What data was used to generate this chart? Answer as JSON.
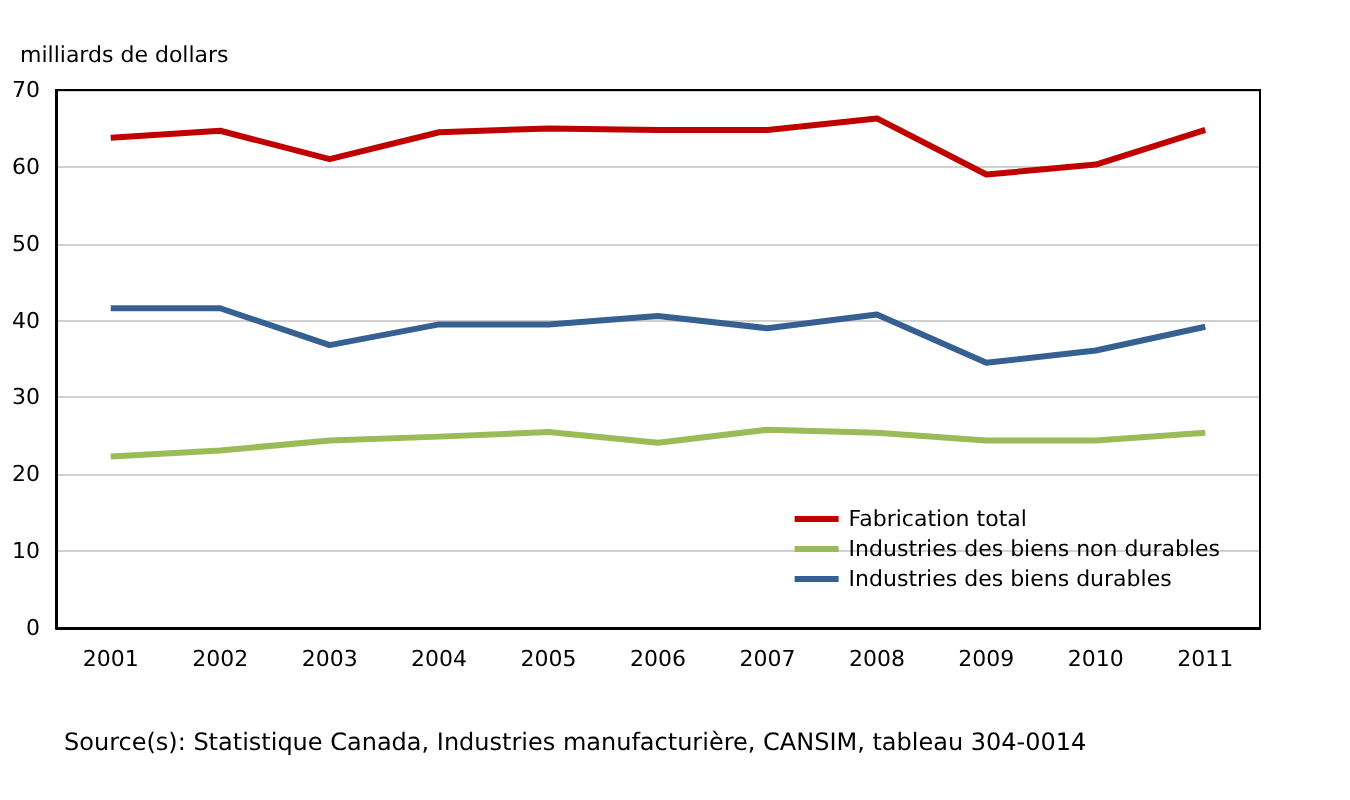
{
  "chart_data": {
    "type": "line",
    "ylabel": "milliards de dollars",
    "categories": [
      "2001",
      "2002",
      "2003",
      "2004",
      "2005",
      "2006",
      "2007",
      "2008",
      "2009",
      "2010",
      "2011"
    ],
    "series": [
      {
        "name": "Fabrication total",
        "color": "#c00000",
        "values": [
          63.8,
          64.7,
          61.0,
          64.5,
          65.0,
          64.8,
          64.8,
          66.3,
          59.0,
          60.3,
          64.8
        ]
      },
      {
        "name": "Industries des biens non durables",
        "color": "#9bbb59",
        "values": [
          22.3,
          23.1,
          24.4,
          24.9,
          25.5,
          24.1,
          25.8,
          25.4,
          24.4,
          24.4,
          25.4
        ]
      },
      {
        "name": "Industries des biens durables",
        "color": "#376092",
        "values": [
          41.6,
          41.6,
          36.8,
          39.5,
          39.5,
          40.6,
          39.0,
          40.8,
          34.5,
          36.1,
          39.2
        ]
      }
    ],
    "ylim": [
      0,
      70
    ],
    "yticks": [
      0,
      10,
      20,
      30,
      40,
      50,
      60,
      70
    ],
    "grid": "y",
    "legend": "bottom right",
    "marker": "none",
    "line_style": "solid",
    "annotations": [
      "Source(s): Statistique Canada, Industries manufacturière, CANSIM, tableau 304-0014"
    ]
  }
}
